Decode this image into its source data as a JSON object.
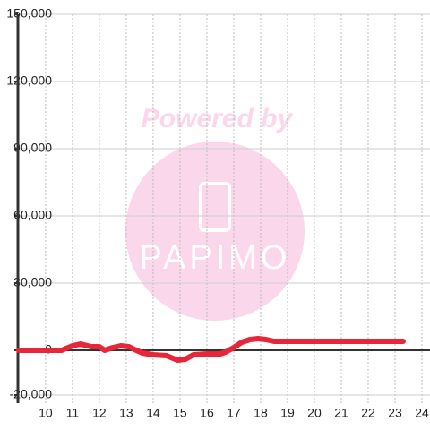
{
  "chart_data": {
    "type": "line",
    "watermark": {
      "caption": "Powered by",
      "logo": "PAPIMO"
    },
    "x": [
      9,
      10.6,
      11,
      11.3,
      11.7,
      12,
      12.2,
      12.5,
      12.8,
      13.1,
      13.3,
      13.6,
      14,
      14.5,
      14.9,
      15.2,
      15.5,
      16,
      16.5,
      16.7,
      17,
      17.3,
      17.6,
      17.9,
      18.2,
      18.5,
      19,
      20,
      21,
      22,
      23.3
    ],
    "series": [
      {
        "color": "#e8263a",
        "values": [
          0,
          0,
          2000,
          2800,
          1600,
          1600,
          0,
          1200,
          2000,
          1600,
          400,
          -1200,
          -2000,
          -2400,
          -4400,
          -4000,
          -2000,
          -1600,
          -1600,
          -800,
          1200,
          3600,
          4800,
          5200,
          4800,
          4000,
          4000,
          4000,
          4000,
          4000,
          4000
        ]
      }
    ],
    "xlim": [
      8.97,
      24.3
    ],
    "xticks": [
      10,
      11,
      12,
      13,
      14,
      15,
      16,
      17,
      18,
      19,
      20,
      21,
      22,
      23,
      24
    ],
    "ylim": [
      -23600,
      150000
    ],
    "yticks": [
      {
        "value": -20000,
        "label": "-20,000"
      },
      0,
      {
        "value": 30000,
        "label": "30,000"
      },
      {
        "value": 60000,
        "label": "60,000"
      },
      {
        "value": 90000,
        "label": "90,000"
      },
      {
        "value": 120000,
        "label": "120,000"
      },
      {
        "value": 150000,
        "label": "150,000"
      }
    ],
    "grid": true
  }
}
